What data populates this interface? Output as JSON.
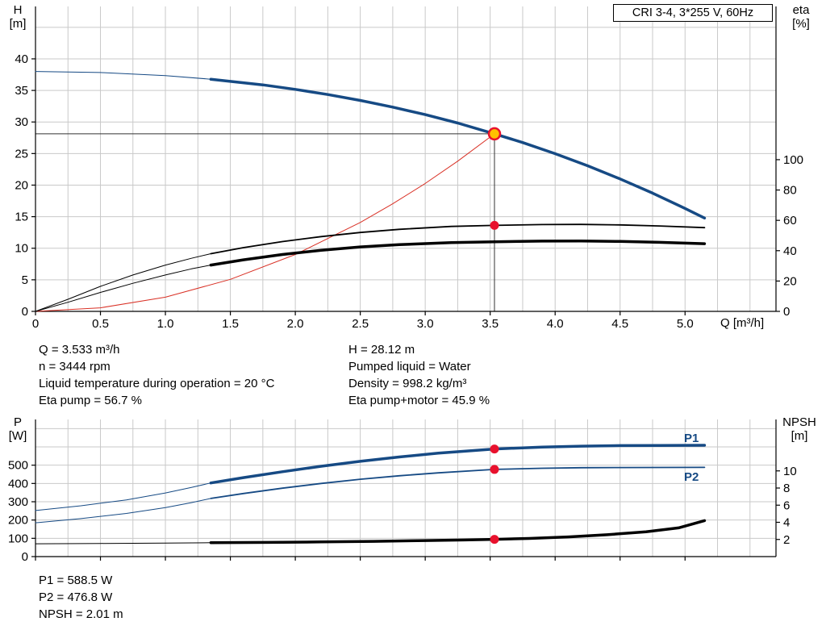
{
  "colors": {
    "blue": "#164a84",
    "red": "#d93025",
    "marker_red": "#e8112d",
    "yellow": "#ffc000",
    "black": "#000000",
    "grid": "#c9c9c9",
    "axis": "#000000",
    "duty_line": "#333333"
  },
  "title_box": {
    "text": "CRI 3-4, 3*255 V, 60Hz"
  },
  "axis_labels": {
    "h": "H",
    "h_unit": "[m]",
    "eta": "eta",
    "eta_unit": "[%]",
    "q": "Q [m³/h]",
    "p": "P",
    "p_unit": "[W]",
    "npsh": "NPSH",
    "npsh_unit": "[m]"
  },
  "curve_labels": {
    "p1": "P1",
    "p2": "P2"
  },
  "info_block": {
    "left": [
      "Q = 3.533 m³/h",
      "n = 3444 rpm",
      "Liquid temperature during operation = 20 °C",
      "Eta pump = 56.7 %"
    ],
    "right": [
      "H = 28.12 m",
      "Pumped liquid = Water",
      "Density = 998.2 kg/m³",
      "Eta pump+motor = 45.9 %"
    ]
  },
  "results_block": [
    "P1 = 588.5 W",
    "P2 = 476.8 W",
    "NPSH = 2.01 m"
  ],
  "chart_data": [
    {
      "id": "qh",
      "type": "line",
      "title": "CRI 3-4, 3*255 V, 60Hz",
      "x_axis": {
        "label": "Q [m³/h]",
        "min": 0,
        "max": 5.7,
        "ticks": [
          0,
          0.5,
          1,
          1.5,
          2,
          2.5,
          3,
          3.5,
          4,
          4.5,
          5
        ],
        "tick_labels": [
          "0",
          "0.5",
          "1.0",
          "1.5",
          "2.0",
          "2.5",
          "3.0",
          "3.5",
          "4.0",
          "4.5",
          "5.0"
        ],
        "grid_step": 0.25,
        "show_tick_labels": true
      },
      "y_left": {
        "label": "H [m]",
        "min": 0,
        "max": 48.3,
        "ticks": [
          0,
          5,
          10,
          15,
          20,
          25,
          30,
          35,
          40
        ],
        "grid": [
          5,
          10,
          15,
          20,
          25,
          30,
          35,
          40,
          45
        ]
      },
      "y_right": {
        "label": "eta [%]",
        "min": 0,
        "max": 201,
        "ticks": [
          0,
          20,
          40,
          60,
          80,
          100
        ]
      },
      "duty_point": {
        "Q": 3.533,
        "H": 28.12,
        "eta_pump": 56.7,
        "eta_pump_motor": 45.9
      },
      "duty_lines": {
        "q": 3.533,
        "h": 28.12
      },
      "series": [
        {
          "name": "qh-curve-extension",
          "axis": "left",
          "color": "blue",
          "width": 1,
          "points": [
            [
              0,
              38
            ],
            [
              0.5,
              37.84
            ],
            [
              1,
              37.35
            ],
            [
              1.35,
              36.78
            ]
          ]
        },
        {
          "name": "qh-curve",
          "axis": "left",
          "color": "blue",
          "width": 3.5,
          "points": [
            [
              1.35,
              36.78
            ],
            [
              1.75,
              35.88
            ],
            [
              2,
              35.17
            ],
            [
              2.25,
              34.35
            ],
            [
              2.5,
              33.41
            ],
            [
              2.75,
              32.35
            ],
            [
              3,
              31.16
            ],
            [
              3.25,
              29.83
            ],
            [
              3.533,
              28.12
            ],
            [
              3.75,
              26.74
            ],
            [
              4,
              24.98
            ],
            [
              4.25,
              23.06
            ],
            [
              4.5,
              20.98
            ],
            [
              4.75,
              18.73
            ],
            [
              5,
              16.31
            ],
            [
              5.15,
              14.78
            ]
          ]
        },
        {
          "name": "system-curve",
          "axis": "left",
          "color": "red",
          "width": 1,
          "points": [
            [
              0,
              0
            ],
            [
              0.5,
              0.56
            ],
            [
              1,
              2.25
            ],
            [
              1.5,
              5.07
            ],
            [
              2,
              9.01
            ],
            [
              2.5,
              14.08
            ],
            [
              2.75,
              17.04
            ],
            [
              3,
              20.27
            ],
            [
              3.25,
              23.79
            ],
            [
              3.533,
              28.12
            ]
          ]
        },
        {
          "name": "eta-pump-curve-extension",
          "axis": "right",
          "color": "black",
          "width": 1,
          "points": [
            [
              0,
              0
            ],
            [
              0.25,
              8
            ],
            [
              0.5,
              16.5
            ],
            [
              0.75,
              24
            ],
            [
              1,
              30.5
            ],
            [
              1.2,
              35
            ],
            [
              1.35,
              38
            ]
          ]
        },
        {
          "name": "eta-pump-curve",
          "axis": "right",
          "color": "black",
          "width": 1.8,
          "points": [
            [
              1.35,
              38
            ],
            [
              1.6,
              42
            ],
            [
              1.9,
              46
            ],
            [
              2.2,
              49.3
            ],
            [
              2.5,
              52
            ],
            [
              2.8,
              54.1
            ],
            [
              3.2,
              56
            ],
            [
              3.533,
              56.7
            ],
            [
              3.9,
              57.2
            ],
            [
              4.2,
              57.3
            ],
            [
              4.5,
              57
            ],
            [
              4.8,
              56.3
            ],
            [
              5.15,
              55.2
            ]
          ]
        },
        {
          "name": "eta-pump-motor-curve-extension",
          "axis": "right",
          "color": "black",
          "width": 1,
          "points": [
            [
              0,
              0
            ],
            [
              0.25,
              6
            ],
            [
              0.5,
              12.5
            ],
            [
              0.75,
              18.5
            ],
            [
              1,
              24
            ],
            [
              1.2,
              28
            ],
            [
              1.35,
              30.5
            ]
          ]
        },
        {
          "name": "eta-pump-motor-curve",
          "axis": "right",
          "color": "black",
          "width": 3.5,
          "points": [
            [
              1.35,
              30.5
            ],
            [
              1.6,
              34
            ],
            [
              1.9,
              37.5
            ],
            [
              2.2,
              40.3
            ],
            [
              2.5,
              42.5
            ],
            [
              2.8,
              44
            ],
            [
              3.2,
              45.3
            ],
            [
              3.533,
              45.9
            ],
            [
              3.9,
              46.3
            ],
            [
              4.2,
              46.4
            ],
            [
              4.5,
              46.1
            ],
            [
              4.8,
              45.5
            ],
            [
              5.15,
              44.6
            ]
          ]
        }
      ],
      "markers": [
        {
          "name": "duty-point-marker",
          "axis": "left",
          "q": 3.533,
          "v": 28.12,
          "r": 7,
          "fill": "yellow",
          "stroke": "marker_red",
          "stroke_width": 2.5
        },
        {
          "name": "eta-pump-duty-marker",
          "axis": "right",
          "q": 3.533,
          "v": 56.7,
          "r": 5.5,
          "fill": "marker_red"
        }
      ]
    },
    {
      "id": "power-npsh",
      "type": "line",
      "x_axis": {
        "label": "",
        "min": 0,
        "max": 5.7,
        "ticks": [
          0,
          0.5,
          1,
          1.5,
          2,
          2.5,
          3,
          3.5,
          4,
          4.5,
          5
        ],
        "tick_labels": [],
        "grid_step": 0.25,
        "show_tick_labels": false
      },
      "y_left": {
        "label": "P [W]",
        "min": 0,
        "max": 750,
        "ticks": [
          0,
          100,
          200,
          300,
          400,
          500
        ],
        "grid": [
          100,
          200,
          300,
          400,
          500,
          600,
          700
        ]
      },
      "y_right": {
        "label": "NPSH [m]",
        "min": 0,
        "max": 16,
        "ticks": [
          2,
          4,
          6,
          8,
          10
        ]
      },
      "duty_point": {
        "Q": 3.533,
        "P1": 588.5,
        "P2": 476.8,
        "NPSH": 2.01
      },
      "series": [
        {
          "name": "p1-curve-extension",
          "axis": "left",
          "color": "blue",
          "width": 1,
          "points": [
            [
              0,
              252
            ],
            [
              0.35,
              278
            ],
            [
              0.7,
              310
            ],
            [
              1,
              348
            ],
            [
              1.2,
              378
            ],
            [
              1.35,
              403
            ]
          ]
        },
        {
          "name": "p1-curve",
          "axis": "left",
          "color": "blue",
          "width": 3.5,
          "points": [
            [
              1.35,
              403
            ],
            [
              1.6,
              432
            ],
            [
              1.9,
              464
            ],
            [
              2.2,
              494
            ],
            [
              2.5,
              521
            ],
            [
              2.8,
              545
            ],
            [
              3.1,
              566
            ],
            [
              3.533,
              588.5
            ],
            [
              3.9,
              599
            ],
            [
              4.2,
              604
            ],
            [
              4.5,
              607
            ],
            [
              4.8,
              608
            ],
            [
              5.15,
              609
            ]
          ]
        },
        {
          "name": "p2-curve-extension",
          "axis": "left",
          "color": "blue",
          "width": 1,
          "points": [
            [
              0,
              185
            ],
            [
              0.35,
              208
            ],
            [
              0.7,
              236
            ],
            [
              1,
              268
            ],
            [
              1.2,
              295
            ],
            [
              1.35,
              318
            ]
          ]
        },
        {
          "name": "p2-curve",
          "axis": "left",
          "color": "blue",
          "width": 1.8,
          "points": [
            [
              1.35,
              318
            ],
            [
              1.6,
              345
            ],
            [
              1.9,
              374
            ],
            [
              2.2,
              400
            ],
            [
              2.5,
              423
            ],
            [
              2.8,
              442
            ],
            [
              3.1,
              458
            ],
            [
              3.533,
              476.8
            ],
            [
              3.9,
              483
            ],
            [
              4.2,
              486
            ],
            [
              4.5,
              487
            ],
            [
              5.15,
              488
            ]
          ]
        },
        {
          "name": "npsh-curve-extension",
          "axis": "right",
          "color": "black",
          "width": 1,
          "points": [
            [
              0,
              1.5
            ],
            [
              0.5,
              1.53
            ],
            [
              1,
              1.57
            ],
            [
              1.35,
              1.62
            ]
          ]
        },
        {
          "name": "npsh-curve",
          "axis": "right",
          "color": "black",
          "width": 3.5,
          "points": [
            [
              1.35,
              1.62
            ],
            [
              1.8,
              1.66
            ],
            [
              2.2,
              1.71
            ],
            [
              2.6,
              1.78
            ],
            [
              3,
              1.87
            ],
            [
              3.3,
              1.94
            ],
            [
              3.533,
              2.01
            ],
            [
              3.8,
              2.12
            ],
            [
              4.1,
              2.3
            ],
            [
              4.4,
              2.55
            ],
            [
              4.7,
              2.9
            ],
            [
              4.95,
              3.35
            ],
            [
              5.15,
              4.2
            ]
          ]
        }
      ],
      "markers": [
        {
          "name": "p1-duty-marker",
          "axis": "left",
          "q": 3.533,
          "v": 588.5,
          "r": 5.5,
          "fill": "marker_red"
        },
        {
          "name": "p2-duty-marker",
          "axis": "left",
          "q": 3.533,
          "v": 476.8,
          "r": 5.5,
          "fill": "marker_red"
        },
        {
          "name": "npsh-duty-marker",
          "axis": "right",
          "q": 3.533,
          "v": 2.01,
          "r": 5.5,
          "fill": "marker_red"
        }
      ]
    }
  ]
}
